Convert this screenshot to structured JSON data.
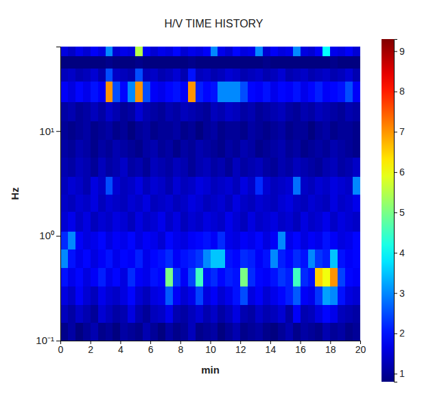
{
  "chart_data": {
    "type": "heatmap",
    "title": "H/V TIME HISTORY",
    "x_label": "min",
    "y_label": "Hz",
    "log": "y",
    "xlim": [
      0,
      20
    ],
    "xticks": [
      0,
      2,
      4,
      6,
      8,
      10,
      12,
      14,
      16,
      18,
      20
    ],
    "ylim": [
      0.1,
      64
    ],
    "yticks": [
      {
        "value": 0.1,
        "label": "10⁻¹"
      },
      {
        "value": 1,
        "label": "10⁰"
      },
      {
        "value": 10,
        "label": "10¹"
      }
    ],
    "x_edges": [
      0,
      0.5,
      1,
      1.5,
      2,
      2.5,
      3,
      3.5,
      4,
      4.5,
      5,
      5.5,
      6,
      6.5,
      7,
      7.5,
      8,
      8.5,
      9,
      9.5,
      10,
      10.5,
      11,
      11.5,
      12,
      12.5,
      13,
      13.5,
      14,
      14.5,
      15,
      15.5,
      16,
      16.5,
      17,
      17.5,
      18,
      18.5,
      19,
      19.5,
      20
    ],
    "y_edges": [
      0.1,
      0.15,
      0.22,
      0.33,
      0.5,
      0.75,
      1.1,
      1.7,
      2.5,
      3.7,
      5.6,
      8.3,
      12.5,
      19,
      30,
      40,
      52,
      64
    ],
    "z": [
      [
        0.9,
        1.1,
        0.8,
        1.0,
        1.2,
        0.9,
        1.0,
        0.8,
        1.1,
        1.0,
        0.9,
        1.2,
        1.0,
        0.8,
        1.1,
        0.9,
        1.0,
        1.3,
        0.9,
        1.0,
        1.1,
        0.8,
        1.0,
        1.2,
        0.9,
        1.0,
        1.1,
        0.9,
        0.8,
        1.0,
        1.2,
        0.9,
        1.1,
        1.0,
        0.9,
        1.2,
        1.0,
        1.1,
        0.9,
        1.0
      ],
      [
        1.3,
        1.1,
        1.4,
        1.2,
        1.0,
        1.5,
        1.3,
        1.1,
        1.2,
        1.6,
        1.2,
        1.0,
        1.3,
        1.4,
        1.7,
        1.2,
        1.1,
        1.3,
        1.5,
        1.2,
        1.4,
        1.1,
        1.3,
        1.6,
        1.2,
        1.1,
        1.4,
        1.2,
        1.3,
        1.5,
        1.1,
        1.8,
        1.2,
        1.3,
        1.6,
        1.9,
        1.7,
        1.3,
        1.2,
        1.1
      ],
      [
        1.6,
        1.4,
        1.8,
        1.5,
        1.3,
        1.7,
        1.5,
        1.4,
        1.6,
        1.9,
        1.5,
        1.3,
        1.6,
        1.7,
        2.6,
        1.8,
        1.5,
        1.7,
        2.4,
        1.6,
        1.8,
        1.5,
        1.7,
        2.0,
        2.5,
        1.6,
        1.8,
        1.5,
        1.7,
        1.9,
        2.1,
        2.6,
        1.8,
        1.7,
        2.3,
        3.2,
        3.0,
        2.0,
        1.6,
        1.5
      ],
      [
        2.0,
        1.7,
        1.9,
        1.6,
        1.8,
        2.1,
        1.7,
        1.9,
        1.6,
        2.2,
        1.8,
        1.7,
        2.0,
        1.9,
        5.0,
        2.3,
        1.8,
        2.4,
        4.5,
        2.0,
        2.2,
        1.9,
        2.1,
        2.0,
        5.0,
        2.2,
        1.9,
        1.8,
        2.0,
        2.3,
        2.1,
        4.5,
        2.2,
        2.0,
        6.5,
        6.0,
        7.0,
        2.4,
        1.9,
        1.8
      ],
      [
        3.0,
        2.0,
        1.7,
        1.9,
        1.6,
        1.8,
        2.0,
        1.7,
        1.9,
        1.8,
        2.1,
        1.7,
        1.9,
        2.0,
        2.2,
        1.8,
        2.0,
        2.1,
        2.3,
        3.0,
        3.5,
        3.5,
        2.0,
        1.9,
        2.2,
        2.1,
        1.8,
        2.0,
        3.0,
        2.1,
        1.9,
        2.2,
        2.0,
        3.0,
        2.3,
        2.1,
        3.5,
        2.0,
        1.8,
        1.9
      ],
      [
        2.2,
        3.0,
        1.8,
        1.6,
        1.7,
        1.9,
        1.6,
        1.8,
        1.7,
        1.9,
        1.6,
        1.8,
        1.7,
        1.5,
        1.9,
        1.7,
        1.6,
        1.8,
        1.9,
        2.0,
        1.8,
        2.2,
        1.7,
        1.6,
        1.8,
        1.7,
        1.9,
        1.6,
        1.8,
        3.0,
        1.7,
        1.9,
        1.6,
        1.8,
        1.7,
        2.0,
        1.8,
        1.6,
        1.7,
        1.9
      ],
      [
        1.5,
        1.7,
        1.4,
        1.6,
        1.3,
        1.5,
        1.4,
        1.6,
        1.5,
        1.3,
        1.6,
        1.4,
        1.5,
        1.7,
        1.4,
        1.6,
        1.3,
        1.5,
        1.4,
        1.6,
        1.5,
        1.4,
        1.7,
        1.5,
        1.3,
        1.6,
        1.4,
        1.5,
        1.6,
        1.4,
        1.5,
        1.3,
        1.6,
        1.4,
        1.5,
        1.7,
        1.4,
        1.6,
        1.5,
        1.4
      ],
      [
        1.4,
        1.3,
        1.5,
        1.4,
        1.6,
        1.3,
        1.5,
        1.4,
        1.3,
        1.5,
        1.4,
        1.6,
        1.3,
        1.4,
        1.5,
        1.3,
        1.4,
        1.6,
        1.5,
        1.3,
        1.4,
        1.5,
        1.3,
        1.6,
        1.4,
        1.3,
        1.5,
        1.4,
        1.3,
        1.5,
        1.6,
        1.4,
        1.3,
        1.5,
        1.4,
        1.3,
        1.6,
        1.4,
        1.5,
        1.7
      ],
      [
        1.3,
        1.5,
        1.4,
        1.2,
        1.6,
        1.4,
        2.5,
        1.5,
        1.3,
        1.4,
        1.6,
        1.3,
        1.5,
        1.4,
        1.2,
        1.5,
        1.3,
        1.4,
        1.6,
        1.5,
        1.3,
        1.4,
        1.5,
        1.3,
        1.6,
        1.4,
        2.2,
        1.5,
        1.3,
        1.4,
        1.5,
        2.8,
        1.4,
        1.3,
        1.5,
        1.4,
        1.6,
        1.5,
        1.4,
        3.0
      ],
      [
        1.2,
        1.1,
        1.3,
        1.2,
        1.0,
        1.3,
        1.1,
        1.2,
        1.4,
        1.1,
        1.2,
        1.0,
        1.3,
        1.2,
        1.1,
        1.3,
        1.2,
        1.0,
        1.2,
        1.3,
        1.1,
        1.2,
        1.0,
        1.3,
        1.1,
        1.2,
        1.3,
        1.1,
        1.0,
        1.2,
        1.1,
        1.3,
        1.2,
        1.1,
        1.0,
        1.2,
        1.3,
        1.1,
        1.2,
        1.4
      ],
      [
        1.1,
        1.0,
        1.2,
        1.1,
        0.9,
        1.1,
        1.0,
        1.2,
        1.1,
        1.0,
        0.9,
        1.1,
        1.2,
        1.0,
        1.1,
        0.9,
        1.1,
        1.0,
        1.2,
        1.1,
        1.0,
        0.9,
        1.1,
        1.0,
        1.2,
        1.1,
        0.9,
        1.0,
        1.1,
        1.2,
        1.0,
        1.1,
        0.9,
        1.0,
        1.1,
        1.0,
        1.2,
        1.1,
        1.0,
        0.9
      ],
      [
        1.0,
        0.9,
        1.0,
        1.1,
        0.9,
        1.0,
        1.1,
        0.9,
        1.0,
        0.8,
        1.0,
        1.1,
        0.9,
        1.0,
        1.0,
        1.1,
        0.9,
        1.0,
        0.8,
        1.0,
        1.1,
        0.9,
        1.0,
        1.0,
        0.9,
        1.1,
        1.0,
        0.9,
        1.0,
        1.1,
        0.9,
        1.0,
        1.0,
        0.8,
        1.0,
        1.1,
        0.9,
        1.0,
        1.0,
        0.9
      ],
      [
        1.1,
        1.2,
        1.0,
        1.1,
        1.3,
        1.1,
        1.4,
        1.2,
        1.0,
        1.1,
        1.5,
        1.2,
        1.1,
        1.0,
        1.2,
        1.1,
        1.3,
        1.2,
        1.1,
        1.0,
        1.3,
        1.2,
        1.4,
        1.3,
        1.1,
        1.2,
        1.0,
        1.1,
        1.2,
        1.3,
        1.1,
        1.0,
        1.2,
        1.1,
        1.3,
        1.2,
        1.1,
        1.0,
        1.2,
        1.1
      ],
      [
        1.8,
        1.6,
        1.9,
        1.7,
        2.0,
        1.8,
        7.0,
        2.5,
        1.9,
        3.0,
        7.0,
        2.5,
        1.8,
        1.7,
        1.9,
        2.0,
        1.8,
        7.0,
        2.1,
        1.9,
        2.0,
        3.0,
        3.0,
        3.0,
        2.5,
        1.9,
        1.8,
        2.0,
        1.7,
        1.9,
        1.8,
        2.0,
        1.7,
        1.9,
        2.1,
        1.8,
        1.9,
        2.0,
        2.5,
        1.8
      ],
      [
        1.3,
        1.4,
        1.2,
        1.3,
        1.5,
        1.2,
        2.5,
        1.4,
        1.3,
        1.2,
        2.5,
        1.3,
        1.4,
        1.2,
        1.3,
        1.5,
        1.2,
        2.0,
        1.3,
        1.4,
        1.2,
        1.3,
        1.5,
        1.4,
        1.2,
        1.3,
        1.4,
        1.2,
        1.3,
        1.5,
        1.2,
        1.3,
        1.4,
        1.2,
        1.3,
        1.4,
        1.2,
        1.3,
        1.5,
        1.2
      ],
      [
        0.7,
        0.8,
        0.6,
        0.7,
        0.8,
        0.7,
        0.9,
        0.7,
        0.6,
        0.8,
        0.9,
        0.7,
        0.8,
        0.6,
        0.7,
        0.8,
        0.7,
        0.9,
        0.7,
        0.8,
        0.6,
        0.7,
        0.8,
        0.7,
        0.6,
        0.8,
        0.7,
        0.9,
        0.7,
        0.8,
        0.7,
        0.6,
        0.8,
        0.7,
        0.8,
        0.7,
        0.9,
        0.7,
        0.6,
        0.8
      ],
      [
        1.6,
        1.4,
        1.7,
        1.5,
        1.8,
        1.6,
        3.0,
        1.5,
        1.7,
        1.6,
        5.5,
        1.8,
        1.5,
        1.7,
        1.6,
        1.9,
        1.5,
        1.7,
        1.6,
        1.8,
        3.0,
        1.7,
        1.5,
        1.9,
        1.6,
        1.7,
        3.0,
        1.5,
        1.8,
        1.6,
        1.7,
        3.0,
        1.6,
        1.5,
        1.8,
        4.0,
        1.7,
        1.6,
        1.8,
        1.5
      ]
    ],
    "colorbar_range": [
      0.8,
      9.3
    ],
    "colorbar_ticks": [
      1,
      2,
      3,
      4,
      5,
      6,
      7,
      8,
      9
    ]
  }
}
